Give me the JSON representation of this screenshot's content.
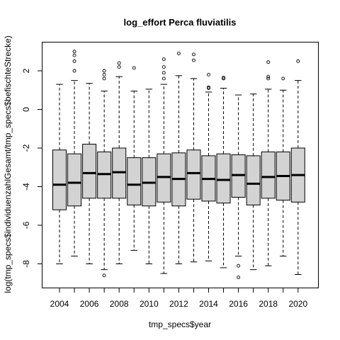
{
  "chart_data": {
    "type": "box",
    "title": "log_effort Perca fluviatilis",
    "xlabel": "tmp_specs$year",
    "ylabel": "log(tmp_specs$individuenzahlGesamt/tmp_specs$befischteStrecke)",
    "categories": [
      2004,
      2005,
      2006,
      2007,
      2008,
      2009,
      2010,
      2011,
      2012,
      2013,
      2014,
      2015,
      2016,
      2017,
      2018,
      2019,
      2020
    ],
    "x_tick_labels": [
      "2004",
      "2006",
      "2008",
      "2010",
      "2012",
      "2014",
      "2016",
      "2018",
      "2020"
    ],
    "y_ticks": [
      -8,
      -6,
      -4,
      -2,
      0,
      2
    ],
    "ylim": [
      -9.2,
      3.5
    ],
    "box_fill": "#d3d3d3",
    "boxes": [
      {
        "year": 2004,
        "low": -8.0,
        "q1": -5.2,
        "median": -3.9,
        "q3": -2.1,
        "high": 1.3,
        "outliers": []
      },
      {
        "year": 2005,
        "low": -7.6,
        "q1": -5.0,
        "median": -3.8,
        "q3": -2.3,
        "high": 1.5,
        "outliers": [
          2.0,
          2.5,
          2.8,
          3.0
        ]
      },
      {
        "year": 2006,
        "low": -8.0,
        "q1": -4.6,
        "median": -3.3,
        "q3": -1.8,
        "high": 1.35,
        "outliers": []
      },
      {
        "year": 2007,
        "low": -8.3,
        "q1": -4.6,
        "median": -3.35,
        "q3": -2.2,
        "high": 0.95,
        "outliers": [
          -8.6,
          1.6,
          1.8,
          2.0
        ]
      },
      {
        "year": 2008,
        "low": -8.0,
        "q1": -4.6,
        "median": -3.25,
        "q3": -2.0,
        "high": 1.7,
        "outliers": [
          2.2,
          2.4
        ]
      },
      {
        "year": 2009,
        "low": -7.3,
        "q1": -4.95,
        "median": -3.9,
        "q3": -2.5,
        "high": 0.95,
        "outliers": [
          2.15
        ]
      },
      {
        "year": 2010,
        "low": -8.0,
        "q1": -5.0,
        "median": -3.8,
        "q3": -2.5,
        "high": 1.05,
        "outliers": []
      },
      {
        "year": 2011,
        "low": -8.5,
        "q1": -4.8,
        "median": -3.5,
        "q3": -2.3,
        "high": 1.3,
        "outliers": [
          1.6,
          1.9,
          2.2,
          2.6
        ]
      },
      {
        "year": 2012,
        "low": -8.0,
        "q1": -5.0,
        "median": -3.6,
        "q3": -2.25,
        "high": 1.75,
        "outliers": [
          2.9
        ]
      },
      {
        "year": 2013,
        "low": -7.9,
        "q1": -4.65,
        "median": -3.3,
        "q3": -2.1,
        "high": 1.6,
        "outliers": [
          2.55,
          2.85
        ]
      },
      {
        "year": 2014,
        "low": -7.85,
        "q1": -4.75,
        "median": -3.6,
        "q3": -2.4,
        "high": 0.9,
        "outliers": [
          1.1,
          1.15,
          1.8
        ]
      },
      {
        "year": 2015,
        "low": -8.2,
        "q1": -4.85,
        "median": -3.65,
        "q3": -2.3,
        "high": 1.1,
        "outliers": [
          1.6,
          1.65
        ]
      },
      {
        "year": 2016,
        "low": -7.6,
        "q1": -4.55,
        "median": -3.4,
        "q3": -2.35,
        "high": 0.75,
        "outliers": [
          -8.1,
          -8.7
        ]
      },
      {
        "year": 2017,
        "low": -8.3,
        "q1": -4.95,
        "median": -3.85,
        "q3": -2.4,
        "high": 0.8,
        "outliers": []
      },
      {
        "year": 2018,
        "low": -8.1,
        "q1": -4.6,
        "median": -3.5,
        "q3": -2.2,
        "high": 1.05,
        "outliers": [
          1.6,
          1.7,
          2.45
        ]
      },
      {
        "year": 2019,
        "low": -7.6,
        "q1": -4.7,
        "median": -3.45,
        "q3": -2.2,
        "high": 1.0,
        "outliers": [
          1.6
        ]
      },
      {
        "year": 2020,
        "low": -8.55,
        "q1": -4.8,
        "median": -3.4,
        "q3": -2.0,
        "high": 1.5,
        "outliers": [
          2.5
        ]
      }
    ]
  }
}
